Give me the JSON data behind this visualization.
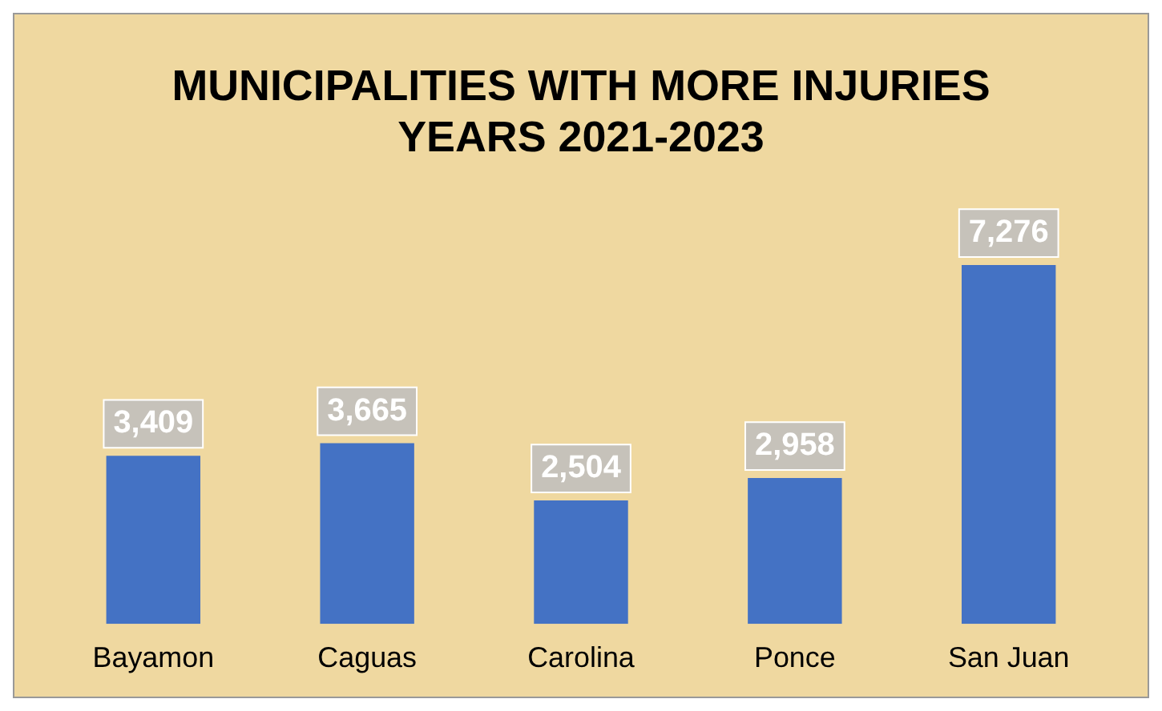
{
  "chart_data": {
    "type": "bar",
    "title": "MUNICIPALITIES WITH MORE INJURIES\nYEARS 2021-2023",
    "categories": [
      "Bayamon",
      "Caguas",
      "Carolina",
      "Ponce",
      "San Juan"
    ],
    "values": [
      3409,
      3665,
      2504,
      2958,
      7276
    ],
    "value_labels": [
      "3,409",
      "3,665",
      "2,504",
      "2,958",
      "7,276"
    ],
    "color": "#4472c4",
    "grid": false,
    "legend": false
  }
}
